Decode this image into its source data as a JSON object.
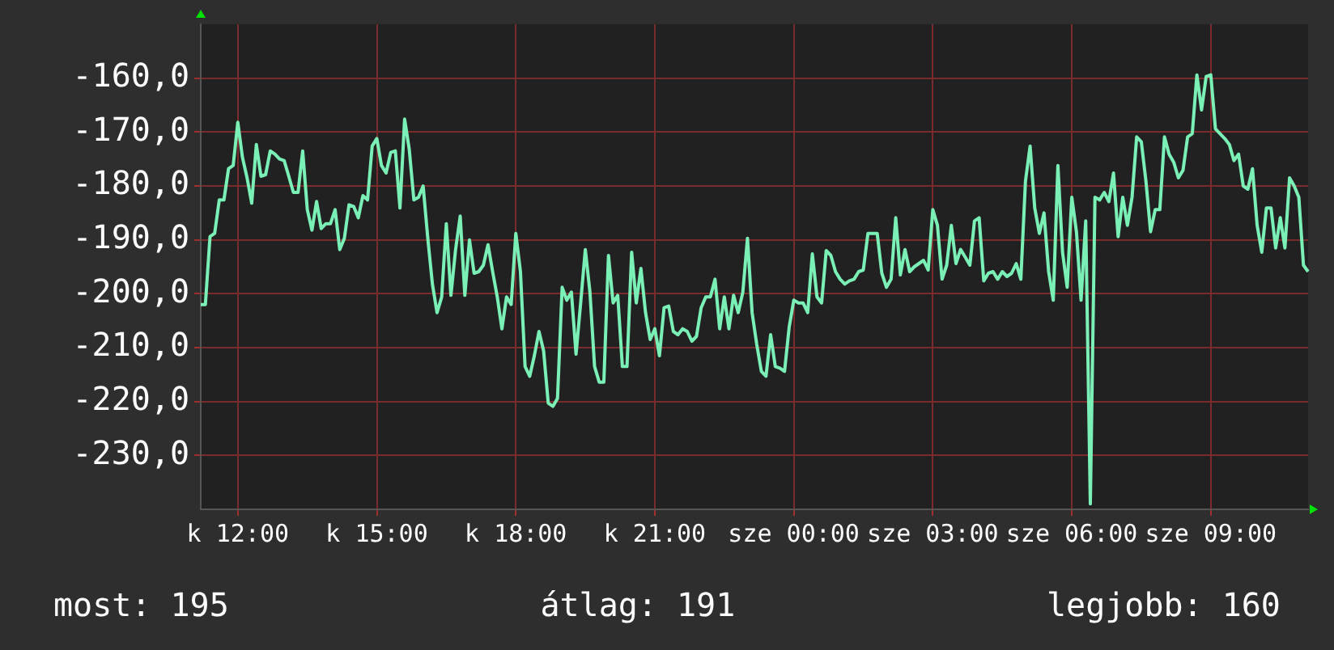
{
  "chart_data": {
    "type": "line",
    "legend": false,
    "grid": true,
    "categories": [
      null,
      null,
      null,
      null,
      null,
      null,
      null,
      null,
      "k 12:00",
      null,
      null,
      null,
      null,
      null,
      null,
      null,
      null,
      null,
      null,
      null,
      null,
      null,
      null,
      null,
      null,
      null,
      null,
      null,
      null,
      null,
      null,
      null,
      null,
      null,
      null,
      null,
      null,
      null,
      "k 15:00",
      null,
      null,
      null,
      null,
      null,
      null,
      null,
      null,
      null,
      null,
      null,
      null,
      null,
      null,
      null,
      null,
      null,
      null,
      null,
      null,
      null,
      null,
      null,
      null,
      null,
      null,
      null,
      null,
      null,
      "k 18:00",
      null,
      null,
      null,
      null,
      null,
      null,
      null,
      null,
      null,
      null,
      null,
      null,
      null,
      null,
      null,
      null,
      null,
      null,
      null,
      null,
      null,
      null,
      null,
      null,
      null,
      null,
      null,
      null,
      null,
      "k 21:00",
      null,
      null,
      null,
      null,
      null,
      null,
      null,
      null,
      null,
      null,
      null,
      null,
      null,
      null,
      null,
      null,
      null,
      null,
      null,
      null,
      null,
      null,
      null,
      null,
      null,
      null,
      null,
      null,
      null,
      "sze 00:00",
      null,
      null,
      null,
      null,
      null,
      null,
      null,
      null,
      null,
      null,
      null,
      null,
      null,
      null,
      null,
      null,
      null,
      null,
      null,
      null,
      null,
      null,
      null,
      null,
      null,
      null,
      null,
      null,
      null,
      "sze 03:00",
      null,
      null,
      null,
      null,
      null,
      null,
      null,
      null,
      null,
      null,
      null,
      null,
      null,
      null,
      null,
      null,
      null,
      null,
      null,
      null,
      null,
      null,
      null,
      null,
      null,
      null,
      null,
      null,
      null,
      "sze 06:00",
      null,
      null,
      null,
      null,
      null,
      null,
      null,
      null,
      null,
      null,
      null,
      null,
      null,
      null,
      null,
      null,
      null,
      null,
      null,
      null,
      null,
      null,
      null,
      null,
      null,
      null,
      null,
      null,
      null,
      "sze 09:00",
      null,
      null,
      null,
      null,
      null,
      null,
      null,
      null,
      null,
      null,
      null,
      null,
      null,
      null,
      null,
      null,
      null,
      null,
      null,
      null,
      null
    ],
    "ylim": [
      -240,
      -150
    ],
    "yticks": [
      {
        "value": -230,
        "label": "-230,0"
      },
      {
        "value": -220,
        "label": "-220,0"
      },
      {
        "value": -210,
        "label": "-210,0"
      },
      {
        "value": -200,
        "label": "-200,0"
      },
      {
        "value": -190,
        "label": "-190,0"
      },
      {
        "value": -180,
        "label": "-180,0"
      },
      {
        "value": -170,
        "label": "-170,0"
      },
      {
        "value": -160,
        "label": "-160,0"
      }
    ],
    "annotations": [
      "most: 195",
      "átlag: 191",
      "legjobb: 160"
    ],
    "series": [
      {
        "color": "#7af0b6",
        "values": [
          -202.0,
          -202.0,
          -189.4,
          -188.8,
          -182.6,
          -182.6,
          -176.8,
          -176.2,
          -168.2,
          -174.7,
          -178.5,
          -183.2,
          -172.3,
          -178.2,
          -177.9,
          -173.5,
          -174.1,
          -175.0,
          -175.3,
          -178.2,
          -181.2,
          -181.2,
          -173.5,
          -184.4,
          -188.2,
          -182.9,
          -187.9,
          -187.0,
          -187.0,
          -184.4,
          -191.8,
          -189.7,
          -183.5,
          -183.8,
          -185.9,
          -181.8,
          -182.6,
          -172.6,
          -171.2,
          -176.2,
          -177.6,
          -173.8,
          -173.5,
          -184.1,
          -167.6,
          -173.2,
          -182.6,
          -182.1,
          -180.0,
          -189.7,
          -198.2,
          -203.5,
          -200.6,
          -187.0,
          -200.3,
          -191.8,
          -185.6,
          -200.3,
          -190.0,
          -196.2,
          -195.9,
          -194.7,
          -190.9,
          -195.9,
          -200.6,
          -206.5,
          -200.6,
          -202.0,
          -188.8,
          -195.9,
          -213.5,
          -215.3,
          -211.5,
          -207.0,
          -210.6,
          -220.3,
          -220.9,
          -219.4,
          -198.8,
          -201.2,
          -199.7,
          -211.2,
          -201.7,
          -191.8,
          -199.7,
          -213.5,
          -216.4,
          -216.4,
          -192.9,
          -201.7,
          -200.3,
          -213.5,
          -213.5,
          -192.3,
          -201.7,
          -195.3,
          -203.5,
          -208.5,
          -206.5,
          -211.5,
          -202.6,
          -202.3,
          -207.0,
          -207.6,
          -206.5,
          -207.0,
          -208.8,
          -207.9,
          -202.6,
          -200.6,
          -200.6,
          -197.3,
          -206.5,
          -200.6,
          -206.5,
          -200.3,
          -203.5,
          -199.7,
          -189.7,
          -203.5,
          -209.4,
          -214.4,
          -215.3,
          -207.6,
          -213.5,
          -213.8,
          -214.4,
          -206.2,
          -201.2,
          -201.7,
          -201.7,
          -203.5,
          -192.6,
          -200.6,
          -201.7,
          -192.0,
          -192.9,
          -195.9,
          -197.3,
          -198.2,
          -197.6,
          -197.3,
          -195.9,
          -195.6,
          -188.8,
          -188.8,
          -188.8,
          -196.2,
          -198.8,
          -197.3,
          -185.9,
          -196.5,
          -191.8,
          -195.9,
          -195.0,
          -194.4,
          -193.8,
          -195.6,
          -184.4,
          -187.3,
          -197.3,
          -194.7,
          -187.3,
          -194.4,
          -191.8,
          -193.2,
          -194.7,
          -186.5,
          -185.9,
          -197.6,
          -196.2,
          -195.9,
          -197.3,
          -195.9,
          -196.8,
          -196.2,
          -194.4,
          -197.3,
          -179.1,
          -172.6,
          -184.1,
          -188.8,
          -185.0,
          -195.9,
          -201.2,
          -176.2,
          -192.3,
          -198.8,
          -182.1,
          -188.5,
          -201.2,
          -186.5,
          -239,
          -182.1,
          -182.6,
          -181.2,
          -182.9,
          -177.6,
          -189.4,
          -182.1,
          -187.3,
          -182.1,
          -170.9,
          -171.8,
          -179.1,
          -188.5,
          -184.4,
          -184.4,
          -170.9,
          -174.1,
          -175.6,
          -178.5,
          -177.1,
          -170.9,
          -170.3,
          -159.4,
          -165.9,
          -159.7,
          -159.4,
          -169.4,
          -170.3,
          -171.2,
          -172.3,
          -175.3,
          -174.1,
          -180.0,
          -180.6,
          -176.8,
          -187.3,
          -192.3,
          -184.1,
          -184.1,
          -191.5,
          -185.9,
          -191.5,
          -178.5,
          -180.0,
          -182.1,
          -194.7,
          -195.9
        ]
      }
    ]
  }
}
